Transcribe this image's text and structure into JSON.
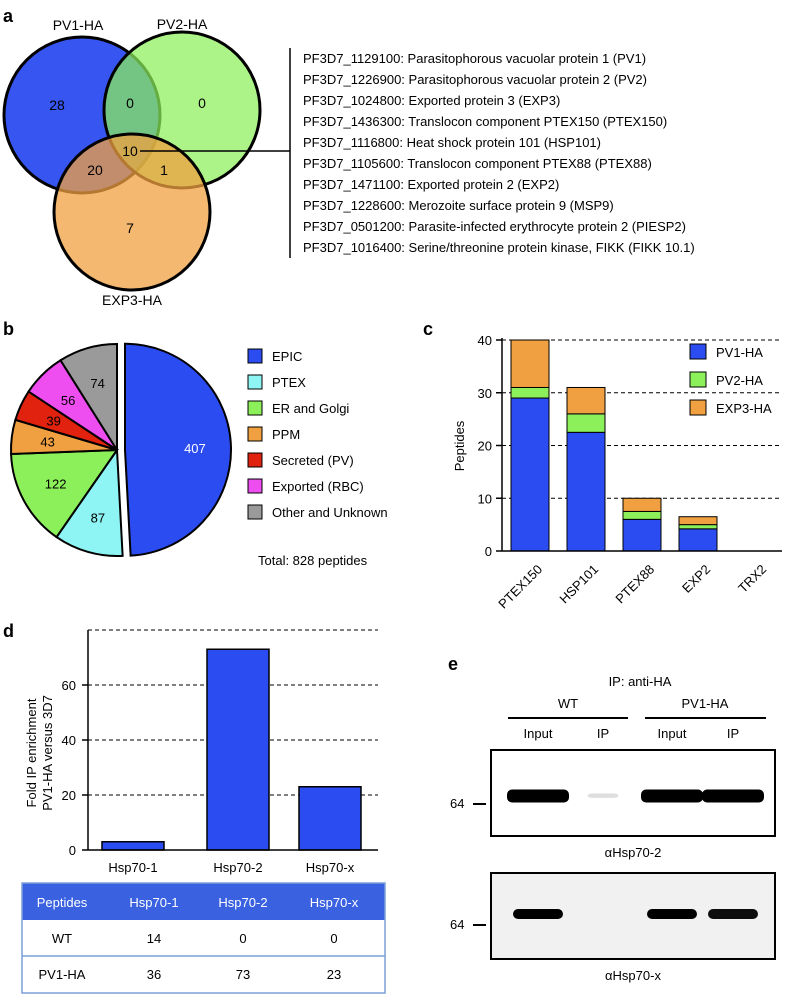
{
  "colors": {
    "pv1": "#2b4cf0",
    "pv2": "#8cf05a",
    "exp3": "#f0a040",
    "epic": "#2b4cf0",
    "ptex": "#8ff4f4",
    "er_golgi": "#8cf05a",
    "ppm": "#f0a040",
    "secreted": "#e0220f",
    "exported": "#ee4ef0",
    "other": "#9a9a9a",
    "table_header": "#3a62e0",
    "table_border": "#7aa0d8"
  },
  "panel_labels": [
    "a",
    "b",
    "c",
    "d",
    "e"
  ],
  "panel_a": {
    "sets": [
      "PV1-HA",
      "PV2-HA",
      "EXP3-HA"
    ],
    "regions": {
      "pv1_only": "28",
      "pv1_pv2": "0",
      "pv2_only": "0",
      "all_three": "10",
      "pv1_exp3": "20",
      "pv2_exp3": "1",
      "exp3_only": "7"
    },
    "proteins": [
      "PF3D7_1129100: Parasitophorous vacuolar protein 1 (PV1)",
      "PF3D7_1226900: Parasitophorous vacuolar protein 2 (PV2)",
      "PF3D7_1024800: Exported protein 3 (EXP3)",
      "PF3D7_1436300: Translocon component PTEX150 (PTEX150)",
      "PF3D7_1116800: Heat shock protein 101 (HSP101)",
      "PF3D7_1105600: Translocon component PTEX88 (PTEX88)",
      "PF3D7_1471100: Exported protein 2 (EXP2)",
      "PF3D7_1228600: Merozoite surface protein 9 (MSP9)",
      "PF3D7_0501200: Parasite-infected erythrocyte protein 2 (PIESP2)",
      "PF3D7_1016400: Serine/threonine protein kinase, FIKK (FIKK 10.1)"
    ]
  },
  "chart_data": [
    {
      "type": "pie",
      "panel": "b",
      "categories": [
        "EPIC",
        "PTEX",
        "ER and Golgi",
        "PPM",
        "Secreted (PV)",
        "Exported (RBC)",
        "Other and Unknown"
      ],
      "values": [
        407,
        87,
        122,
        43,
        39,
        56,
        74
      ],
      "colors": [
        "#2b4cf0",
        "#8ff4f4",
        "#8cf05a",
        "#f0a040",
        "#e0220f",
        "#ee4ef0",
        "#9a9a9a"
      ],
      "exploded": "EPIC",
      "legend": "right",
      "annotation": "Total: 828 peptides"
    },
    {
      "type": "bar",
      "stacked": true,
      "panel": "c",
      "categories": [
        "PTEX150",
        "HSP101",
        "PTEX88",
        "EXP2",
        "TRX2"
      ],
      "series": [
        {
          "name": "PV1-HA",
          "values": [
            29,
            22.5,
            6,
            4.2,
            0
          ],
          "color": "#2b4cf0"
        },
        {
          "name": "PV2-HA",
          "values": [
            2,
            3.5,
            1.5,
            0.8,
            0
          ],
          "color": "#8cf05a"
        },
        {
          "name": "EXP3-HA",
          "values": [
            9,
            5,
            2.5,
            1.5,
            0
          ],
          "color": "#f0a040"
        }
      ],
      "ylabel": "Peptides",
      "ylim": [
        0,
        40
      ],
      "yticks": [
        0,
        10,
        20,
        30,
        40
      ],
      "grid": "dashed horizontal",
      "legend": "top-right"
    },
    {
      "type": "bar",
      "panel": "d",
      "categories": [
        "Hsp70-1",
        "Hsp70-2",
        "Hsp70-x"
      ],
      "values": [
        3,
        73,
        23
      ],
      "color": "#2b4cf0",
      "ylabel_line1": "Fold IP enrichment",
      "ylabel_line2": "PV1-HA versus 3D7",
      "ylim": [
        0,
        80
      ],
      "yticks": [
        0,
        20,
        40,
        60
      ],
      "grid": "dashed horizontal"
    }
  ],
  "panel_d_table": {
    "headers": [
      "Peptides",
      "Hsp70-1",
      "Hsp70-2",
      "Hsp70-x"
    ],
    "rows": [
      [
        "WT",
        "14",
        "0",
        "0"
      ],
      [
        "PV1-HA",
        "36",
        "73",
        "23"
      ]
    ]
  },
  "panel_e": {
    "ip_label": "IP: anti-HA",
    "groups": [
      "WT",
      "PV1-HA"
    ],
    "lanes": [
      "Input",
      "IP",
      "Input",
      "IP"
    ],
    "blots": [
      {
        "marker": "64",
        "antibody": "αHsp70-2",
        "band_intensity": [
          1.0,
          0.08,
          1.0,
          1.0
        ]
      },
      {
        "marker": "64",
        "antibody": "αHsp70-x",
        "band_intensity": [
          1.0,
          0.0,
          1.0,
          0.9
        ]
      }
    ]
  }
}
